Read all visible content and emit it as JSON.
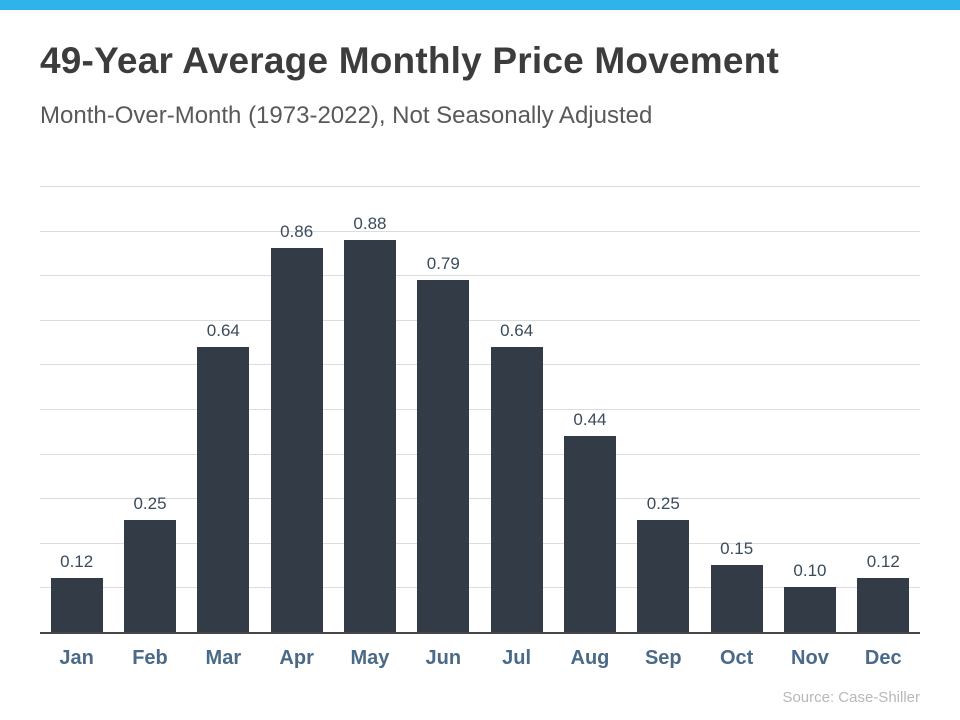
{
  "chart_data": {
    "type": "bar",
    "title": "49-Year Average Monthly Price Movement",
    "subtitle": "Month-Over-Month (1973-2022), Not Seasonally Adjusted",
    "categories": [
      "Jan",
      "Feb",
      "Mar",
      "Apr",
      "May",
      "Jun",
      "Jul",
      "Aug",
      "Sep",
      "Oct",
      "Nov",
      "Dec"
    ],
    "values": [
      0.12,
      0.25,
      0.64,
      0.86,
      0.88,
      0.79,
      0.64,
      0.44,
      0.25,
      0.15,
      0.1,
      0.12
    ],
    "value_labels": [
      "0.12",
      "0.25",
      "0.64",
      "0.86",
      "0.88",
      "0.79",
      "0.64",
      "0.44",
      "0.25",
      "0.15",
      "0.10",
      "0.12"
    ],
    "xlabel": "",
    "ylabel": "",
    "ylim": [
      0,
      1.0
    ],
    "grid": "horizontal",
    "legend": "none",
    "source": "Source: Case-Shiller",
    "colors": {
      "accent_top_bar": "#2fb4e9",
      "bar": "#333b46",
      "title": "#3c3c3c",
      "subtitle": "#58595b",
      "value_label": "#3a4b5c",
      "month_label": "#4a6a87",
      "source": "#b6b8ba"
    }
  }
}
